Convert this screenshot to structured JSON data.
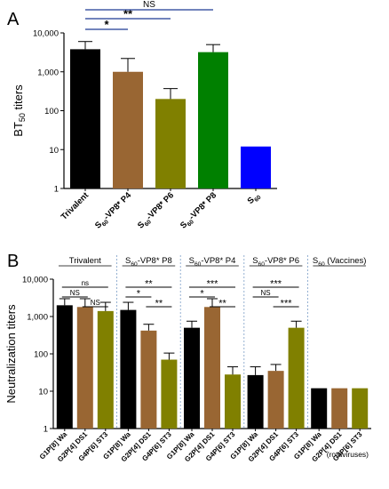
{
  "chart_data": [
    {
      "panel_label": "A",
      "type": "bar",
      "ylabel": "BT",
      "ylabel_sub": "50",
      "ylabel_suffix": " titers",
      "yscale": "log",
      "ylim": [
        1,
        10000
      ],
      "ytick_labels": [
        "1",
        "10",
        "100",
        "1,000",
        "10,000"
      ],
      "categories": [
        {
          "pre": "Trivalent",
          "sub": "",
          "post": ""
        },
        {
          "pre": "S",
          "sub": "60",
          "post": "-VP8* P4"
        },
        {
          "pre": "S",
          "sub": "60",
          "post": "-VP8* P6"
        },
        {
          "pre": "S",
          "sub": "60",
          "post": "-VP8* P8"
        },
        {
          "pre": "S",
          "sub": "60",
          "post": ""
        }
      ],
      "values": [
        3800,
        1000,
        200,
        3200,
        12
      ],
      "error_upper": [
        6000,
        2200,
        370,
        5000,
        null
      ],
      "colors": [
        "#000000",
        "#996633",
        "#808000",
        "#008000",
        "#0000ff"
      ],
      "significance": [
        {
          "from": 0,
          "to": 1,
          "label": "*"
        },
        {
          "from": 0,
          "to": 2,
          "label": "**"
        },
        {
          "from": 0,
          "to": 3,
          "label": "NS"
        }
      ]
    },
    {
      "panel_label": "B",
      "type": "bar",
      "ylabel": "Neutralization titers",
      "yscale": "log",
      "ylim": [
        1,
        10000
      ],
      "ytick_labels": [
        "1",
        "10",
        "100",
        "1,000",
        "10,000"
      ],
      "groups": [
        {
          "pre": "Trivalent",
          "sub": "",
          "post": ""
        },
        {
          "pre": "S",
          "sub": "60",
          "post": "-VP8* P8"
        },
        {
          "pre": "S",
          "sub": "60",
          "post": "-VP8* P4"
        },
        {
          "pre": "S",
          "sub": "60",
          "post": "-VP8* P6"
        },
        {
          "pre": "S",
          "sub": "60",
          "post": " (Vaccines)"
        }
      ],
      "categories": [
        "G1P[8] Wa",
        "G2P[4] DS1",
        "G4P[6] ST3"
      ],
      "colors": [
        "#000000",
        "#996633",
        "#808000"
      ],
      "values": [
        [
          2000,
          1800,
          1400
        ],
        [
          1500,
          420,
          70
        ],
        [
          500,
          1800,
          28
        ],
        [
          27,
          35,
          500
        ],
        [
          12,
          12,
          12
        ]
      ],
      "error_upper": [
        [
          3000,
          3000,
          2400
        ],
        [
          2400,
          620,
          105
        ],
        [
          750,
          3000,
          45
        ],
        [
          45,
          52,
          750
        ],
        [
          null,
          null,
          null
        ]
      ],
      "significance": [
        [
          {
            "from": 0,
            "to": 2,
            "label": "ns"
          },
          {
            "from": 0,
            "to": 1,
            "label": "NS"
          },
          {
            "from": 1,
            "to": 2,
            "label": "NS"
          }
        ],
        [
          {
            "from": 0,
            "to": 2,
            "label": "**"
          },
          {
            "from": 0,
            "to": 1,
            "label": "*"
          },
          {
            "from": 1,
            "to": 2,
            "label": "**"
          }
        ],
        [
          {
            "from": 0,
            "to": 2,
            "label": "***"
          },
          {
            "from": 0,
            "to": 1,
            "label": "*"
          },
          {
            "from": 1,
            "to": 2,
            "label": "**"
          }
        ],
        [
          {
            "from": 0,
            "to": 2,
            "label": "***"
          },
          {
            "from": 0,
            "to": 1,
            "label": "NS"
          },
          {
            "from": 1,
            "to": 2,
            "label": "***"
          }
        ],
        []
      ],
      "x_annotation": "(rotaviruses)"
    }
  ]
}
